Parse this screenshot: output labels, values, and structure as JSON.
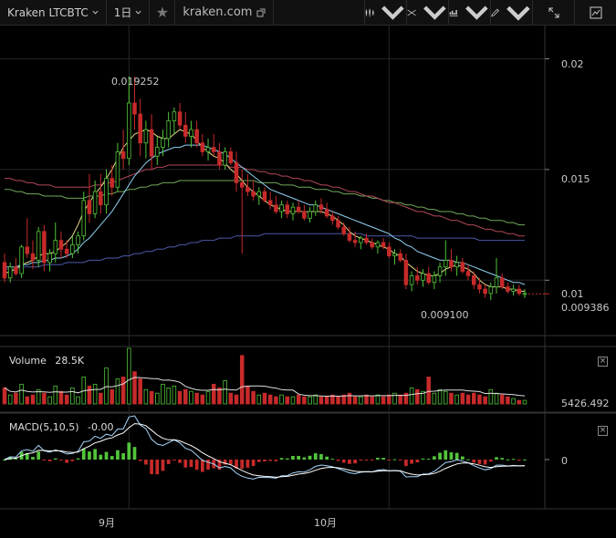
{
  "toolbar": {
    "symbol": "Kraken LTCBTC",
    "interval": "1日",
    "site": "kraken.com"
  },
  "price_axis": {
    "ticks": [
      {
        "value": 0.02,
        "label": "0.02"
      },
      {
        "value": 0.015,
        "label": "0.015"
      },
      {
        "value": 0.01,
        "label": "0.01"
      }
    ],
    "last_price": "0.009386",
    "last_price_value": 0.009386
  },
  "annotations": {
    "high_label": "0.019252",
    "high_value": 0.019252,
    "low_label": "0.009100",
    "low_value": 0.0091
  },
  "volume": {
    "title": "Volume",
    "value": "28.5K",
    "axis_label": "5426.492"
  },
  "macd": {
    "title": "MACD(5,10,5)",
    "value": "-0.00",
    "axis_label": "0"
  },
  "time_axis": {
    "labels": [
      {
        "label": "9月",
        "index": 22
      },
      {
        "label": "10月",
        "index": 68
      }
    ]
  },
  "colors": {
    "up": "#52c43a",
    "down": "#c62a2a",
    "ma_fast": "#e8d88a",
    "ma_mid": "#8fd0f0",
    "ma_slow1": "#b04858",
    "ma_slow2": "#6fa858",
    "ma_slow3": "#4a5aa8",
    "macd_line": "#a8d8ff",
    "signal_line": "#ffffff",
    "grid": "#262626"
  },
  "chart_data": {
    "type": "candlestick",
    "price_ylim": [
      0.0075,
      0.0215
    ],
    "candles": [
      [
        0.0108,
        0.0112,
        0.0099,
        0.0101
      ],
      [
        0.0101,
        0.0108,
        0.0099,
        0.0106
      ],
      [
        0.0106,
        0.011,
        0.0102,
        0.0103
      ],
      [
        0.0103,
        0.0116,
        0.0101,
        0.0115
      ],
      [
        0.0115,
        0.0128,
        0.011,
        0.0112
      ],
      [
        0.0112,
        0.0118,
        0.0105,
        0.0109
      ],
      [
        0.0109,
        0.0124,
        0.0106,
        0.0122
      ],
      [
        0.0122,
        0.0125,
        0.0104,
        0.0108
      ],
      [
        0.0108,
        0.0114,
        0.0104,
        0.0112
      ],
      [
        0.0112,
        0.0126,
        0.0108,
        0.0118
      ],
      [
        0.0118,
        0.0122,
        0.011,
        0.0114
      ],
      [
        0.0114,
        0.0118,
        0.011,
        0.0112
      ],
      [
        0.0112,
        0.012,
        0.011,
        0.0116
      ],
      [
        0.0116,
        0.0122,
        0.0112,
        0.012
      ],
      [
        0.012,
        0.014,
        0.0118,
        0.0136
      ],
      [
        0.0136,
        0.0148,
        0.0126,
        0.013
      ],
      [
        0.013,
        0.0145,
        0.0128,
        0.014
      ],
      [
        0.014,
        0.0148,
        0.013,
        0.0134
      ],
      [
        0.0134,
        0.015,
        0.013,
        0.0146
      ],
      [
        0.0146,
        0.0152,
        0.0138,
        0.0142
      ],
      [
        0.0142,
        0.0162,
        0.014,
        0.0158
      ],
      [
        0.0158,
        0.0168,
        0.015,
        0.0155
      ],
      [
        0.0155,
        0.0192,
        0.0152,
        0.018
      ],
      [
        0.018,
        0.0192,
        0.0168,
        0.0175
      ],
      [
        0.0175,
        0.0182,
        0.0156,
        0.0162
      ],
      [
        0.0162,
        0.0172,
        0.0155,
        0.0168
      ],
      [
        0.0168,
        0.0175,
        0.015,
        0.0156
      ],
      [
        0.0156,
        0.0165,
        0.0152,
        0.016
      ],
      [
        0.016,
        0.0168,
        0.0156,
        0.0164
      ],
      [
        0.0164,
        0.0176,
        0.016,
        0.0172
      ],
      [
        0.0172,
        0.0178,
        0.0166,
        0.0176
      ],
      [
        0.0176,
        0.018,
        0.0168,
        0.017
      ],
      [
        0.017,
        0.0176,
        0.0162,
        0.0165
      ],
      [
        0.0165,
        0.0172,
        0.016,
        0.0168
      ],
      [
        0.0168,
        0.0172,
        0.016,
        0.0162
      ],
      [
        0.0162,
        0.0166,
        0.0156,
        0.0158
      ],
      [
        0.0158,
        0.0164,
        0.0154,
        0.016
      ],
      [
        0.016,
        0.0166,
        0.0156,
        0.0158
      ],
      [
        0.0158,
        0.0162,
        0.015,
        0.0152
      ],
      [
        0.0152,
        0.016,
        0.015,
        0.0158
      ],
      [
        0.0158,
        0.016,
        0.0152,
        0.0153
      ],
      [
        0.0153,
        0.0158,
        0.014,
        0.0144
      ],
      [
        0.0144,
        0.015,
        0.0112,
        0.0142
      ],
      [
        0.0142,
        0.0148,
        0.0138,
        0.014
      ],
      [
        0.014,
        0.0145,
        0.0136,
        0.0138
      ],
      [
        0.0138,
        0.0142,
        0.0134,
        0.014
      ],
      [
        0.014,
        0.0142,
        0.0135,
        0.0136
      ],
      [
        0.0136,
        0.014,
        0.0132,
        0.0134
      ],
      [
        0.0134,
        0.0138,
        0.013,
        0.0131
      ],
      [
        0.0131,
        0.0136,
        0.0128,
        0.0134
      ],
      [
        0.0134,
        0.0136,
        0.0128,
        0.013
      ],
      [
        0.013,
        0.0135,
        0.0127,
        0.0133
      ],
      [
        0.0133,
        0.0136,
        0.013,
        0.0131
      ],
      [
        0.0131,
        0.0134,
        0.0127,
        0.0128
      ],
      [
        0.0128,
        0.0133,
        0.0126,
        0.0131
      ],
      [
        0.0131,
        0.0136,
        0.0129,
        0.0134
      ],
      [
        0.0134,
        0.0137,
        0.013,
        0.0132
      ],
      [
        0.0132,
        0.0135,
        0.0128,
        0.0129
      ],
      [
        0.0129,
        0.0131,
        0.0125,
        0.0127
      ],
      [
        0.0127,
        0.0129,
        0.0123,
        0.0124
      ],
      [
        0.0124,
        0.0126,
        0.012,
        0.0121
      ],
      [
        0.0121,
        0.0124,
        0.0117,
        0.0118
      ],
      [
        0.0118,
        0.0122,
        0.0115,
        0.0117
      ],
      [
        0.0117,
        0.012,
        0.0114,
        0.0119
      ],
      [
        0.0119,
        0.0121,
        0.0116,
        0.0117
      ],
      [
        0.0117,
        0.0119,
        0.0114,
        0.0115
      ],
      [
        0.0115,
        0.0118,
        0.0112,
        0.0117
      ],
      [
        0.0117,
        0.0119,
        0.0114,
        0.0115
      ],
      [
        0.0115,
        0.0117,
        0.011,
        0.0111
      ],
      [
        0.0111,
        0.0114,
        0.0107,
        0.0112
      ],
      [
        0.0112,
        0.0114,
        0.0108,
        0.0109
      ],
      [
        0.0109,
        0.0112,
        0.0096,
        0.0098
      ],
      [
        0.0098,
        0.0104,
        0.0095,
        0.0102
      ],
      [
        0.0102,
        0.0106,
        0.0098,
        0.01
      ],
      [
        0.01,
        0.0105,
        0.0097,
        0.0103
      ],
      [
        0.0103,
        0.0106,
        0.0098,
        0.0099
      ],
      [
        0.0099,
        0.0104,
        0.0096,
        0.0102
      ],
      [
        0.0102,
        0.0108,
        0.0099,
        0.0106
      ],
      [
        0.0106,
        0.0118,
        0.0102,
        0.0109
      ],
      [
        0.0109,
        0.0114,
        0.0104,
        0.0106
      ],
      [
        0.0106,
        0.0111,
        0.0102,
        0.0108
      ],
      [
        0.0108,
        0.011,
        0.0103,
        0.0104
      ],
      [
        0.0104,
        0.0107,
        0.01,
        0.0102
      ],
      [
        0.0102,
        0.0104,
        0.0096,
        0.0098
      ],
      [
        0.0098,
        0.0101,
        0.0094,
        0.0096
      ],
      [
        0.0096,
        0.0098,
        0.0092,
        0.0094
      ],
      [
        0.0094,
        0.0099,
        0.0091,
        0.0097
      ],
      [
        0.0097,
        0.011,
        0.0094,
        0.0101
      ],
      [
        0.0101,
        0.0103,
        0.0096,
        0.0097
      ],
      [
        0.0097,
        0.0099,
        0.0094,
        0.0095
      ],
      [
        0.0095,
        0.0098,
        0.0093,
        0.0096
      ],
      [
        0.0096,
        0.0098,
        0.0093,
        0.0094
      ],
      [
        0.0094,
        0.0096,
        0.0092,
        0.0094
      ]
    ],
    "volumes": [
      18,
      10,
      12,
      22,
      8,
      10,
      16,
      12,
      8,
      20,
      14,
      10,
      18,
      8,
      30,
      20,
      22,
      12,
      40,
      16,
      28,
      30,
      62,
      36,
      28,
      16,
      14,
      12,
      22,
      18,
      20,
      14,
      16,
      14,
      12,
      10,
      14,
      22,
      18,
      26,
      12,
      10,
      54,
      20,
      14,
      10,
      12,
      10,
      8,
      10,
      8,
      8,
      10,
      8,
      8,
      10,
      8,
      8,
      10,
      8,
      10,
      12,
      8,
      8,
      10,
      8,
      10,
      8,
      10,
      12,
      10,
      12,
      18,
      16,
      14,
      30,
      12,
      16,
      14,
      12,
      10,
      12,
      10,
      12,
      10,
      8,
      16,
      12,
      10,
      8,
      6,
      4,
      4
    ],
    "ma_fast": [
      0.0103,
      0.0104,
      0.0105,
      0.0107,
      0.0108,
      0.0109,
      0.0111,
      0.0112,
      0.0112,
      0.0113,
      0.0115,
      0.0117,
      0.012,
      0.0125,
      0.0131,
      0.0135,
      0.0139,
      0.0142,
      0.0146,
      0.015,
      0.0155,
      0.016,
      0.0163,
      0.0166,
      0.0167,
      0.0168,
      0.0167,
      0.0165,
      0.0164,
      0.0164,
      0.0166,
      0.0168,
      0.0167,
      0.0166,
      0.0163,
      0.016,
      0.0158,
      0.0156,
      0.0155,
      0.0153,
      0.015,
      0.0148,
      0.0145,
      0.0142,
      0.014,
      0.0138,
      0.0136,
      0.0134,
      0.0133,
      0.0132,
      0.0131,
      0.0131,
      0.0131,
      0.0131,
      0.0131,
      0.0131,
      0.0131,
      0.013,
      0.0129,
      0.0127,
      0.0125,
      0.0122,
      0.012,
      0.0119,
      0.0118,
      0.0117,
      0.0116,
      0.0115,
      0.0114,
      0.0112,
      0.0111,
      0.0108,
      0.0106,
      0.0104,
      0.0103,
      0.0102,
      0.0102,
      0.0103,
      0.0105,
      0.0106,
      0.0107,
      0.0106,
      0.0105,
      0.0103,
      0.01,
      0.0098,
      0.0097,
      0.0097,
      0.0097,
      0.0096,
      0.0096,
      0.0095,
      0.0095
    ],
    "ma_mid": [
      0.0106,
      0.0106,
      0.0106,
      0.0107,
      0.0107,
      0.0108,
      0.0108,
      0.0109,
      0.0109,
      0.011,
      0.011,
      0.0111,
      0.0112,
      0.0114,
      0.0117,
      0.0119,
      0.0122,
      0.0125,
      0.0128,
      0.0131,
      0.0135,
      0.0139,
      0.0143,
      0.0147,
      0.015,
      0.0153,
      0.0155,
      0.0157,
      0.0158,
      0.0159,
      0.016,
      0.016,
      0.0161,
      0.0161,
      0.0161,
      0.0161,
      0.016,
      0.0159,
      0.0158,
      0.0157,
      0.0155,
      0.0153,
      0.0151,
      0.0149,
      0.0147,
      0.0145,
      0.0143,
      0.0141,
      0.014,
      0.0139,
      0.0138,
      0.0137,
      0.0136,
      0.0135,
      0.0134,
      0.0134,
      0.0133,
      0.0132,
      0.0131,
      0.013,
      0.0129,
      0.0128,
      0.0127,
      0.0126,
      0.0125,
      0.0124,
      0.0123,
      0.0122,
      0.0121,
      0.0119,
      0.0118,
      0.0116,
      0.0115,
      0.0113,
      0.0112,
      0.0111,
      0.011,
      0.0109,
      0.0109,
      0.0109,
      0.0108,
      0.0108,
      0.0107,
      0.0106,
      0.0105,
      0.0104,
      0.0103,
      0.0102,
      0.0101,
      0.01,
      0.0099,
      0.0099,
      0.0098
    ],
    "ma_slow1": [
      0.0146,
      0.0146,
      0.0145,
      0.0145,
      0.0144,
      0.0144,
      0.0143,
      0.0143,
      0.0143,
      0.0142,
      0.0142,
      0.0142,
      0.0142,
      0.0142,
      0.0142,
      0.0142,
      0.0143,
      0.0143,
      0.0144,
      0.0144,
      0.0145,
      0.0146,
      0.0147,
      0.0148,
      0.0149,
      0.015,
      0.015,
      0.0151,
      0.0151,
      0.0152,
      0.0152,
      0.0152,
      0.0152,
      0.0152,
      0.0152,
      0.0152,
      0.0152,
      0.0152,
      0.0152,
      0.0152,
      0.0151,
      0.0151,
      0.0151,
      0.015,
      0.015,
      0.0149,
      0.0149,
      0.0148,
      0.0148,
      0.0147,
      0.0147,
      0.0146,
      0.0146,
      0.0145,
      0.0145,
      0.0144,
      0.0143,
      0.0143,
      0.0142,
      0.0142,
      0.0141,
      0.014,
      0.014,
      0.0139,
      0.0138,
      0.0138,
      0.0137,
      0.0136,
      0.0135,
      0.0135,
      0.0134,
      0.0133,
      0.0132,
      0.0131,
      0.0131,
      0.013,
      0.0129,
      0.0129,
      0.0128,
      0.0127,
      0.0127,
      0.0126,
      0.0125,
      0.0125,
      0.0124,
      0.0123,
      0.0123,
      0.0122,
      0.0122,
      0.0121,
      0.0121,
      0.012,
      0.012
    ],
    "ma_slow2": [
      0.0141,
      0.0141,
      0.014,
      0.014,
      0.0139,
      0.0139,
      0.0139,
      0.0138,
      0.0138,
      0.0138,
      0.0138,
      0.0137,
      0.0137,
      0.0137,
      0.0137,
      0.0138,
      0.0138,
      0.0138,
      0.0139,
      0.0139,
      0.014,
      0.014,
      0.0141,
      0.0141,
      0.0142,
      0.0142,
      0.0143,
      0.0143,
      0.0144,
      0.0144,
      0.0144,
      0.0145,
      0.0145,
      0.0145,
      0.0145,
      0.0145,
      0.0145,
      0.0145,
      0.0145,
      0.0145,
      0.0145,
      0.0145,
      0.0145,
      0.0145,
      0.0145,
      0.0144,
      0.0144,
      0.0144,
      0.0144,
      0.0143,
      0.0143,
      0.0143,
      0.0142,
      0.0142,
      0.0142,
      0.0141,
      0.0141,
      0.0141,
      0.014,
      0.014,
      0.0139,
      0.0139,
      0.0139,
      0.0138,
      0.0138,
      0.0137,
      0.0137,
      0.0136,
      0.0136,
      0.0135,
      0.0135,
      0.0134,
      0.0134,
      0.0133,
      0.0133,
      0.0132,
      0.0132,
      0.0131,
      0.0131,
      0.0131,
      0.013,
      0.013,
      0.0129,
      0.0129,
      0.0128,
      0.0128,
      0.0127,
      0.0127,
      0.0127,
      0.0126,
      0.0126,
      0.0125,
      0.0125
    ],
    "ma_slow3": [
      0.0105,
      0.0105,
      0.0105,
      0.0106,
      0.0106,
      0.0106,
      0.0106,
      0.0107,
      0.0107,
      0.0107,
      0.0107,
      0.0108,
      0.0108,
      0.0108,
      0.0108,
      0.0109,
      0.0109,
      0.0109,
      0.011,
      0.011,
      0.011,
      0.0111,
      0.0111,
      0.0112,
      0.0112,
      0.0113,
      0.0113,
      0.0114,
      0.0114,
      0.0115,
      0.0115,
      0.0116,
      0.0116,
      0.0117,
      0.0117,
      0.0118,
      0.0118,
      0.0118,
      0.0119,
      0.0119,
      0.0119,
      0.012,
      0.012,
      0.012,
      0.012,
      0.012,
      0.0121,
      0.0121,
      0.0121,
      0.0121,
      0.0121,
      0.0121,
      0.0121,
      0.0121,
      0.0121,
      0.0121,
      0.0121,
      0.0121,
      0.0121,
      0.0121,
      0.0121,
      0.0121,
      0.0121,
      0.0121,
      0.012,
      0.012,
      0.012,
      0.012,
      0.012,
      0.012,
      0.012,
      0.012,
      0.012,
      0.0119,
      0.0119,
      0.0119,
      0.0119,
      0.0119,
      0.0119,
      0.0119,
      0.0119,
      0.0119,
      0.0119,
      0.0119,
      0.0118,
      0.0118,
      0.0118,
      0.0118,
      0.0118,
      0.0118,
      0.0118,
      0.0118,
      0.0118
    ]
  }
}
